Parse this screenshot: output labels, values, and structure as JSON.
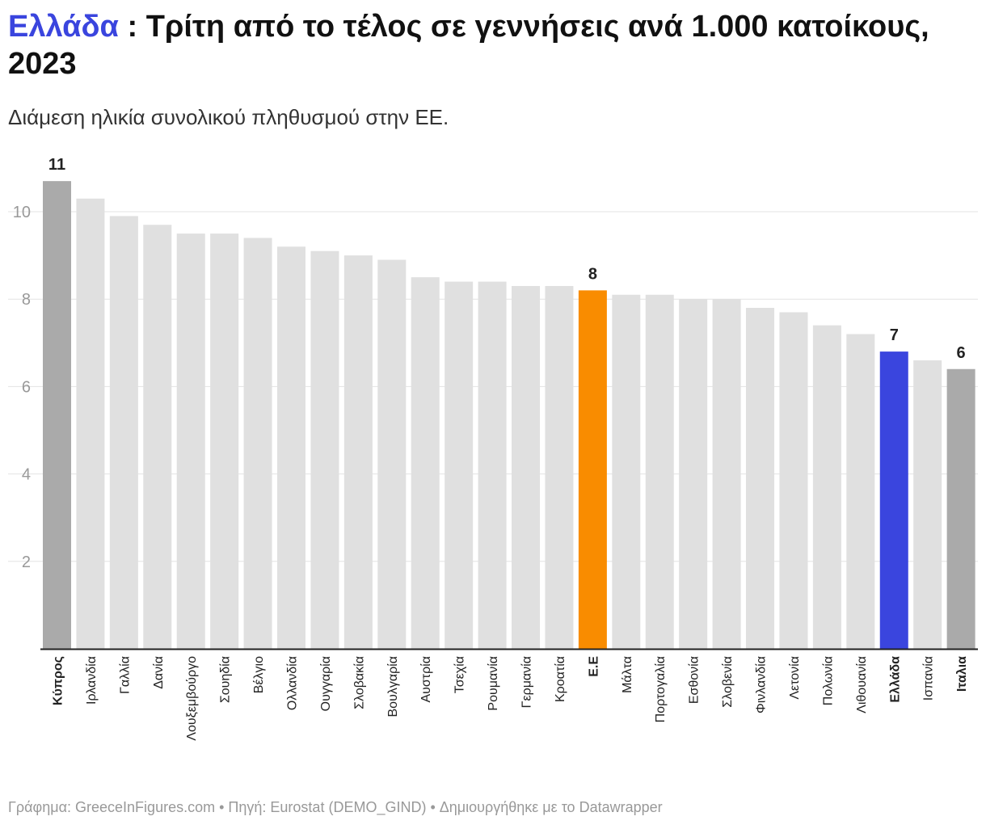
{
  "title": {
    "highlight": "Ελλάδα",
    "rest": " : Τρίτη από το τέλος σε γεννήσεις ανά 1.000 κατοίκους, 2023"
  },
  "subtitle": "Διάμεση ηλικία συνολικού πληθυσμού στην ΕΕ.",
  "footer": "Γράφημα: GreeceInFigures.com • Πηγή: Eurostat (DEMO_GIND) • Δημιουργήθηκε με το Datawrapper",
  "colors": {
    "default": "#e0e0e0",
    "gray": "#aaaaaa",
    "eu": "#f98c00",
    "greece": "#3a45de"
  },
  "chart_data": {
    "type": "bar",
    "title": "Ελλάδα : Τρίτη από το τέλος σε γεννήσεις ανά 1.000 κατοίκους, 2023",
    "ylim": [
      0,
      10.8
    ],
    "yticks": [
      2,
      4,
      6,
      8,
      10
    ],
    "grid": true,
    "categories": [
      "Κύπρος",
      "Ιρλανδία",
      "Γαλλία",
      "Δανία",
      "Λουξεμβούργο",
      "Σουηδία",
      "Βέλγιο",
      "Ολλανδία",
      "Ουγγαρία",
      "Σλοβακία",
      "Βουλγαρία",
      "Αυστρία",
      "Τσεχία",
      "Ρουμανία",
      "Γερμανία",
      "Κροατία",
      "Ε.Ε",
      "Μάλτα",
      "Πορτογαλία",
      "Εσθονία",
      "Σλοβενία",
      "Φινλανδία",
      "Λετονία",
      "Πολωνία",
      "Λιθουανία",
      "Ελλάδα",
      "Ισπανία",
      "Ιταλια"
    ],
    "values": [
      10.7,
      10.3,
      9.9,
      9.7,
      9.5,
      9.5,
      9.4,
      9.2,
      9.1,
      9.0,
      8.9,
      8.5,
      8.4,
      8.4,
      8.3,
      8.3,
      8.2,
      8.1,
      8.1,
      8.0,
      8.0,
      7.8,
      7.7,
      7.4,
      7.2,
      6.8,
      6.6,
      6.4
    ],
    "highlight": {
      "Κύπρος": "gray",
      "Ε.Ε": "eu",
      "Ελλάδα": "greece",
      "Ιταλια": "gray"
    },
    "data_labels": {
      "Κύπρος": "11",
      "Ε.Ε": "8",
      "Ελλάδα": "7",
      "Ιταλια": "6"
    }
  }
}
